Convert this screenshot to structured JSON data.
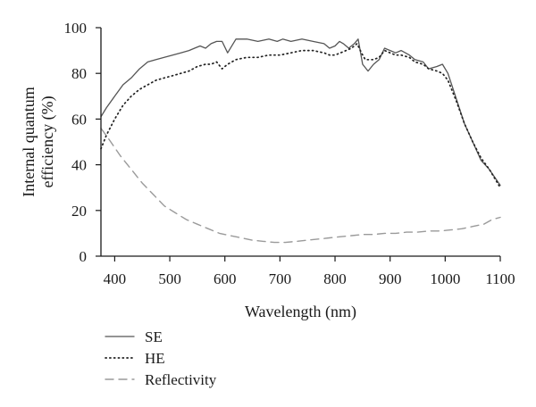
{
  "chart_data": {
    "type": "line",
    "title": "",
    "xlabel": "Wavelength (nm)",
    "ylabel_lines": [
      "Internal quantum",
      "efficiency (%)"
    ],
    "xlim": [
      375,
      1100
    ],
    "ylim": [
      0,
      100
    ],
    "x_ticks": [
      400,
      500,
      600,
      700,
      800,
      900,
      1000,
      1100
    ],
    "y_ticks": [
      0,
      20,
      40,
      60,
      80,
      100
    ],
    "grid": false,
    "legend_position": "bottom-left",
    "series": [
      {
        "name": "SE",
        "style": "solid",
        "color": "#555555",
        "x": [
          375,
          385,
          400,
          415,
          430,
          445,
          460,
          475,
          490,
          505,
          520,
          535,
          545,
          555,
          565,
          575,
          585,
          595,
          605,
          620,
          640,
          660,
          680,
          695,
          705,
          720,
          740,
          760,
          780,
          790,
          800,
          808,
          815,
          825,
          835,
          842,
          850,
          860,
          870,
          880,
          890,
          900,
          910,
          920,
          935,
          945,
          960,
          970,
          985,
          995,
          1005,
          1020,
          1035,
          1050,
          1065,
          1080,
          1100
        ],
        "y": [
          61,
          65,
          70,
          75,
          78,
          82,
          85,
          86,
          87,
          88,
          89,
          90,
          91,
          92,
          91,
          93,
          94,
          94,
          89,
          95,
          95,
          94,
          95,
          94,
          95,
          94,
          95,
          94,
          93,
          91,
          92,
          94,
          93,
          91,
          93,
          95,
          84,
          81,
          84,
          86,
          91,
          90,
          89,
          90,
          88,
          86,
          85,
          82,
          83,
          84,
          80,
          69,
          58,
          50,
          42,
          38,
          31
        ]
      },
      {
        "name": "HE",
        "style": "dotted",
        "color": "#222222",
        "x": [
          375,
          385,
          400,
          415,
          430,
          445,
          460,
          475,
          490,
          505,
          520,
          535,
          550,
          565,
          575,
          585,
          595,
          605,
          620,
          640,
          660,
          680,
          700,
          720,
          740,
          760,
          780,
          790,
          800,
          810,
          820,
          830,
          840,
          848,
          855,
          862,
          870,
          880,
          890,
          900,
          910,
          920,
          935,
          945,
          960,
          970,
          985,
          995,
          1005,
          1020,
          1035,
          1050,
          1065,
          1080,
          1100
        ],
        "y": [
          47,
          53,
          60,
          66,
          70,
          73,
          75,
          77,
          78,
          79,
          80,
          81,
          83,
          84,
          84,
          85,
          82,
          84,
          86,
          87,
          87,
          88,
          88,
          89,
          90,
          90,
          89,
          88,
          88,
          89,
          90,
          91,
          93,
          89,
          86,
          86,
          86,
          87,
          90,
          89,
          88,
          88,
          87,
          85,
          84,
          82,
          81,
          80,
          77,
          68,
          58,
          50,
          43,
          38,
          30
        ]
      },
      {
        "name": "Reflectivity",
        "style": "dashed",
        "color": "#9a9a9a",
        "x": [
          375,
          390,
          410,
          430,
          450,
          470,
          490,
          510,
          530,
          550,
          570,
          590,
          610,
          630,
          650,
          670,
          690,
          710,
          730,
          750,
          770,
          790,
          810,
          830,
          850,
          870,
          890,
          910,
          930,
          950,
          970,
          990,
          1010,
          1030,
          1050,
          1070,
          1085,
          1100
        ],
        "y": [
          56,
          51,
          44,
          38,
          32,
          27,
          22,
          19,
          16,
          14,
          12,
          10,
          9,
          8,
          7,
          6.5,
          6,
          6,
          6.5,
          7,
          7.5,
          8,
          8.5,
          9,
          9.5,
          9.5,
          10,
          10,
          10.5,
          10.5,
          11,
          11,
          11.5,
          12,
          13,
          14,
          16,
          17
        ]
      }
    ]
  }
}
